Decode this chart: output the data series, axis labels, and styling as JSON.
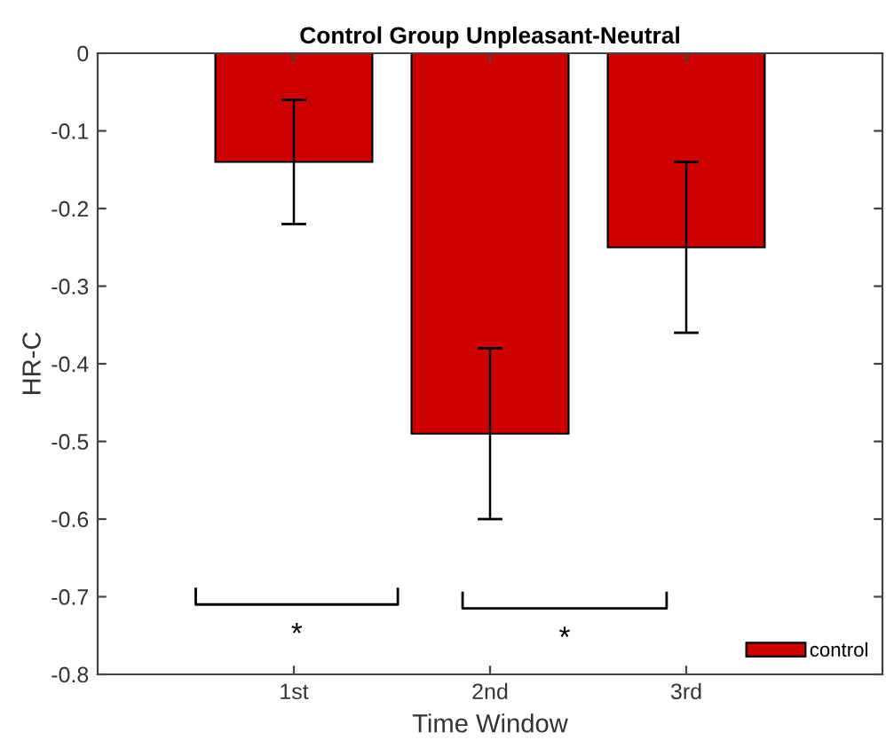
{
  "chart_data": {
    "type": "bar",
    "title": "Control Group Unpleasant-Neutral",
    "xlabel": "Time Window",
    "ylabel": "HR-C",
    "categories": [
      "1st",
      "2nd",
      "3rd"
    ],
    "series": [
      {
        "name": "control",
        "color": "#cc0000",
        "values": [
          -0.14,
          -0.49,
          -0.25
        ],
        "errors": [
          0.08,
          0.11,
          0.11
        ]
      }
    ],
    "ylim": [
      -0.8,
      0
    ],
    "yticks": [
      0,
      -0.1,
      -0.2,
      -0.3,
      -0.4,
      -0.5,
      -0.6,
      -0.7,
      -0.8
    ],
    "annotations": [
      "*",
      "*"
    ],
    "grid": false,
    "legend": "bottom right"
  }
}
